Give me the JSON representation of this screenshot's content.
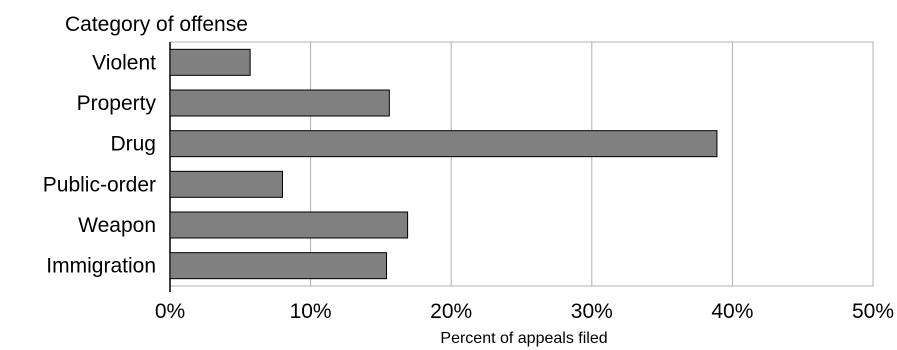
{
  "chart_data": {
    "type": "bar",
    "orientation": "horizontal",
    "y_title": "Category of offense",
    "xlabel": "Percent of appeals filed",
    "categories": [
      "Violent",
      "Property",
      "Drug",
      "Public-order",
      "Weapon",
      "Immigration"
    ],
    "values": [
      5.7,
      15.6,
      38.9,
      8.0,
      16.9,
      15.4
    ],
    "xlim": [
      0,
      50
    ],
    "x_ticks": [
      "0%",
      "10%",
      "20%",
      "30%",
      "40%",
      "50%"
    ],
    "grid": "vertical gridlines",
    "bar_color": "#808080"
  }
}
